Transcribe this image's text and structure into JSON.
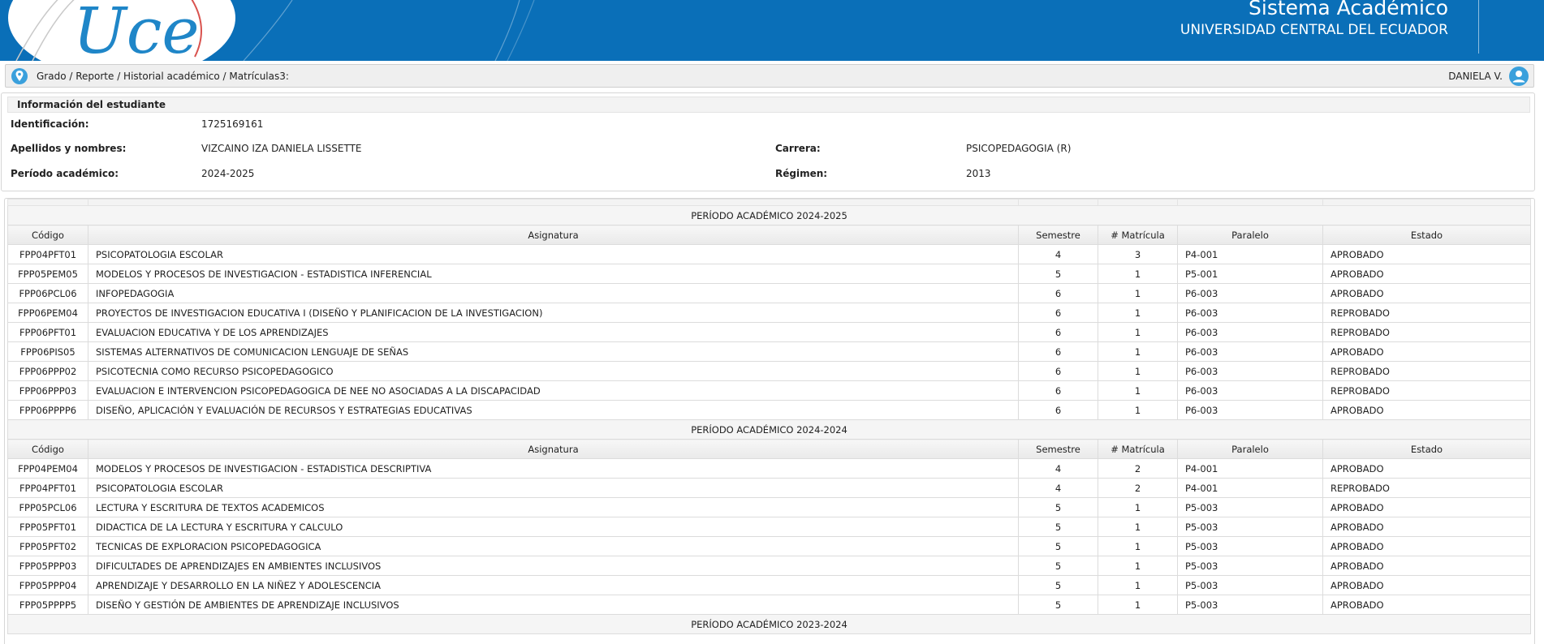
{
  "header": {
    "system_title": "Sistema Académico",
    "university": "UNIVERSIDAD CENTRAL DEL ECUADOR",
    "logo_text": "Uce",
    "brand_color": "#0a6fb8"
  },
  "breadcrumb": {
    "icon": "location-pin-icon",
    "path": "Grado / Reporte / Historial académico / Matrículas3:"
  },
  "user": {
    "name": "DANIELA V.",
    "icon": "user-avatar-icon"
  },
  "student": {
    "section_title": "Información del estudiante",
    "id_label": "Identificación:",
    "id_value": "1725169161",
    "name_label": "Apellidos y nombres:",
    "name_value": "VIZCAINO IZA DANIELA LISSETTE",
    "career_label": "Carrera:",
    "career_value": "PSICOPEDAGOGIA (R)",
    "period_label": "Período académico:",
    "period_value": "2024-2025",
    "regime_label": "Régimen:",
    "regime_value": "2013"
  },
  "columns": [
    "Código",
    "Asignatura",
    "Semestre",
    "# Matrícula",
    "Paralelo",
    "Estado"
  ],
  "periods": [
    {
      "title": "PERÍODO ACADÉMICO 2024-2025",
      "rows": [
        [
          "FPP04PFT01",
          "PSICOPATOLOGIA ESCOLAR",
          "4",
          "3",
          "P4-001",
          "APROBADO"
        ],
        [
          "FPP05PEM05",
          "MODELOS Y PROCESOS DE INVESTIGACION - ESTADISTICA INFERENCIAL",
          "5",
          "1",
          "P5-001",
          "APROBADO"
        ],
        [
          "FPP06PCL06",
          "INFOPEDAGOGIA",
          "6",
          "1",
          "P6-003",
          "APROBADO"
        ],
        [
          "FPP06PEM04",
          "PROYECTOS DE INVESTIGACION EDUCATIVA I (DISEÑO Y PLANIFICACION DE LA INVESTIGACION)",
          "6",
          "1",
          "P6-003",
          "REPROBADO"
        ],
        [
          "FPP06PFT01",
          "EVALUACION EDUCATIVA Y DE LOS APRENDIZAJES",
          "6",
          "1",
          "P6-003",
          "REPROBADO"
        ],
        [
          "FPP06PIS05",
          "SISTEMAS ALTERNATIVOS DE COMUNICACION LENGUAJE DE SEÑAS",
          "6",
          "1",
          "P6-003",
          "APROBADO"
        ],
        [
          "FPP06PPP02",
          "PSICOTECNIA COMO RECURSO PSICOPEDAGOGICO",
          "6",
          "1",
          "P6-003",
          "REPROBADO"
        ],
        [
          "FPP06PPP03",
          "EVALUACION E INTERVENCION PSICOPEDAGOGICA DE NEE NO ASOCIADAS A LA DISCAPACIDAD",
          "6",
          "1",
          "P6-003",
          "REPROBADO"
        ],
        [
          "FPP06PPPP6",
          "DISEÑO, APLICACIÓN Y EVALUACIÓN DE RECURSOS Y ESTRATEGIAS EDUCATIVAS",
          "6",
          "1",
          "P6-003",
          "APROBADO"
        ]
      ]
    },
    {
      "title": "PERÍODO ACADÉMICO 2024-2024",
      "rows": [
        [
          "FPP04PEM04",
          "MODELOS Y PROCESOS DE INVESTIGACION - ESTADISTICA DESCRIPTIVA",
          "4",
          "2",
          "P4-001",
          "APROBADO"
        ],
        [
          "FPP04PFT01",
          "PSICOPATOLOGIA ESCOLAR",
          "4",
          "2",
          "P4-001",
          "REPROBADO"
        ],
        [
          "FPP05PCL06",
          "LECTURA Y ESCRITURA DE TEXTOS ACADEMICOS",
          "5",
          "1",
          "P5-003",
          "APROBADO"
        ],
        [
          "FPP05PFT01",
          "DIDACTICA DE LA LECTURA Y ESCRITURA Y CALCULO",
          "5",
          "1",
          "P5-003",
          "APROBADO"
        ],
        [
          "FPP05PFT02",
          "TECNICAS DE EXPLORACION PSICOPEDAGOGICA",
          "5",
          "1",
          "P5-003",
          "APROBADO"
        ],
        [
          "FPP05PPP03",
          "DIFICULTADES DE APRENDIZAJES EN AMBIENTES INCLUSIVOS",
          "5",
          "1",
          "P5-003",
          "APROBADO"
        ],
        [
          "FPP05PPP04",
          "APRENDIZAJE Y DESARROLLO EN LA NIÑEZ Y ADOLESCENCIA",
          "5",
          "1",
          "P5-003",
          "APROBADO"
        ],
        [
          "FPP05PPPP5",
          "DISEÑO Y GESTIÓN DE AMBIENTES DE APRENDIZAJE INCLUSIVOS",
          "5",
          "1",
          "P5-003",
          "APROBADO"
        ]
      ]
    },
    {
      "title": "PERÍODO ACADÉMICO 2023-2024",
      "rows": []
    }
  ]
}
